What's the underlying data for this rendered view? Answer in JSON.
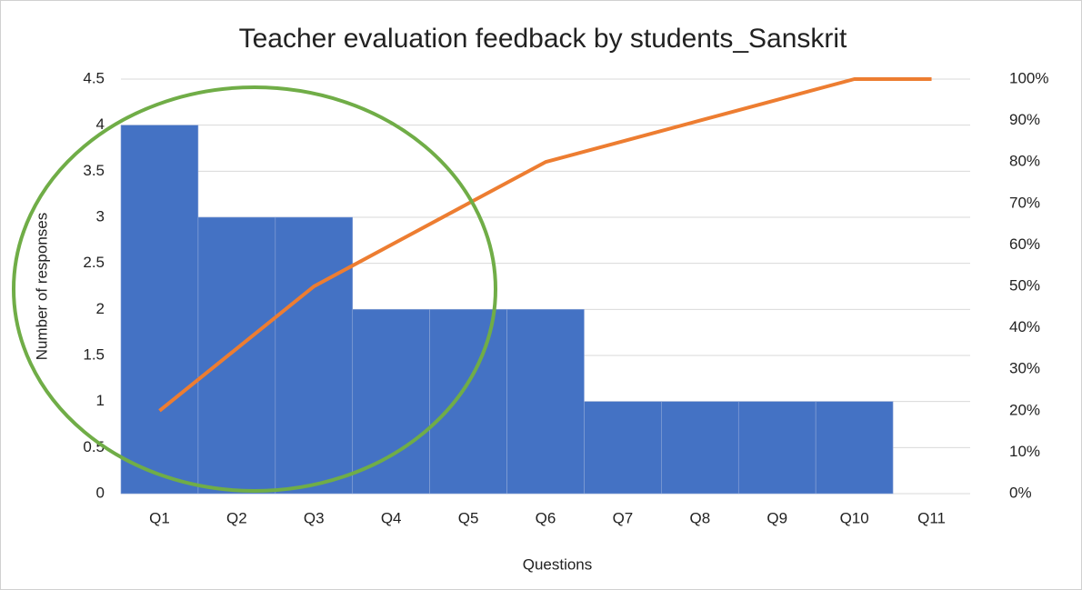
{
  "chart_data": {
    "type": "pareto",
    "title": "Teacher evaluation feedback by students_Sanskrit",
    "x_label": "Questions",
    "y_label": "Number of responses",
    "categories": [
      "Q1",
      "Q2",
      "Q3",
      "Q4",
      "Q5",
      "Q6",
      "Q7",
      "Q8",
      "Q9",
      "Q10",
      "Q11"
    ],
    "series": [
      {
        "type": "bar",
        "color": "#4472c4",
        "values": [
          4,
          3,
          3,
          2,
          2,
          2,
          1,
          1,
          1,
          1,
          0
        ]
      },
      {
        "type": "line",
        "color": "#ed7d31",
        "axis": "y2",
        "values": [
          20,
          35,
          50,
          60,
          70,
          80,
          85,
          90,
          95,
          100,
          100
        ]
      }
    ],
    "ylim": [
      0,
      4.5
    ],
    "yticks": [
      0,
      0.5,
      1,
      1.5,
      2,
      2.5,
      3,
      3.5,
      4,
      4.5
    ],
    "y2lim": [
      0,
      100
    ],
    "y2ticks": [
      {
        "value": 0,
        "label": "0%"
      },
      {
        "value": 10,
        "label": "10%"
      },
      {
        "value": 20,
        "label": "20%"
      },
      {
        "value": 30,
        "label": "30%"
      },
      {
        "value": 40,
        "label": "40%"
      },
      {
        "value": 50,
        "label": "50%"
      },
      {
        "value": 60,
        "label": "60%"
      },
      {
        "value": 70,
        "label": "70%"
      },
      {
        "value": 80,
        "label": "80%"
      },
      {
        "value": 90,
        "label": "90%"
      },
      {
        "value": 100,
        "label": "100%"
      }
    ],
    "grid": true
  }
}
